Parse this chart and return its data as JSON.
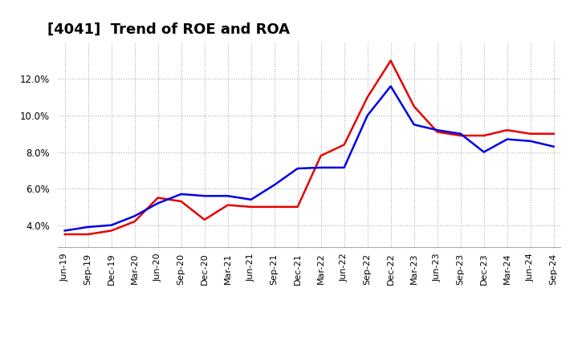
{
  "title": "[4041]  Trend of ROE and ROA",
  "labels": [
    "Jun-19",
    "Sep-19",
    "Dec-19",
    "Mar-20",
    "Jun-20",
    "Sep-20",
    "Dec-20",
    "Mar-21",
    "Jun-21",
    "Sep-21",
    "Dec-21",
    "Mar-22",
    "Jun-22",
    "Sep-22",
    "Dec-22",
    "Mar-23",
    "Jun-23",
    "Sep-23",
    "Dec-23",
    "Mar-24",
    "Jun-24",
    "Sep-24"
  ],
  "roe": [
    3.5,
    3.5,
    3.7,
    4.2,
    5.5,
    5.3,
    4.3,
    5.1,
    5.0,
    5.0,
    5.0,
    7.8,
    8.4,
    11.0,
    13.0,
    10.5,
    9.1,
    8.9,
    8.9,
    9.2,
    9.0,
    9.0
  ],
  "roa": [
    3.7,
    3.9,
    4.0,
    4.5,
    5.2,
    5.7,
    5.6,
    5.6,
    5.4,
    6.2,
    7.1,
    7.15,
    7.15,
    10.0,
    11.6,
    9.5,
    9.2,
    9.0,
    8.0,
    8.7,
    8.6,
    8.3
  ],
  "roe_color": "#e80000",
  "roa_color": "#0000e8",
  "ylim_min": 2.8,
  "ylim_max": 14.0,
  "yticks": [
    4.0,
    6.0,
    8.0,
    10.0,
    12.0
  ],
  "background_color": "#ffffff",
  "grid_color": "#999999",
  "title_fontsize": 13,
  "tick_fontsize": 8,
  "legend_fontsize": 10
}
